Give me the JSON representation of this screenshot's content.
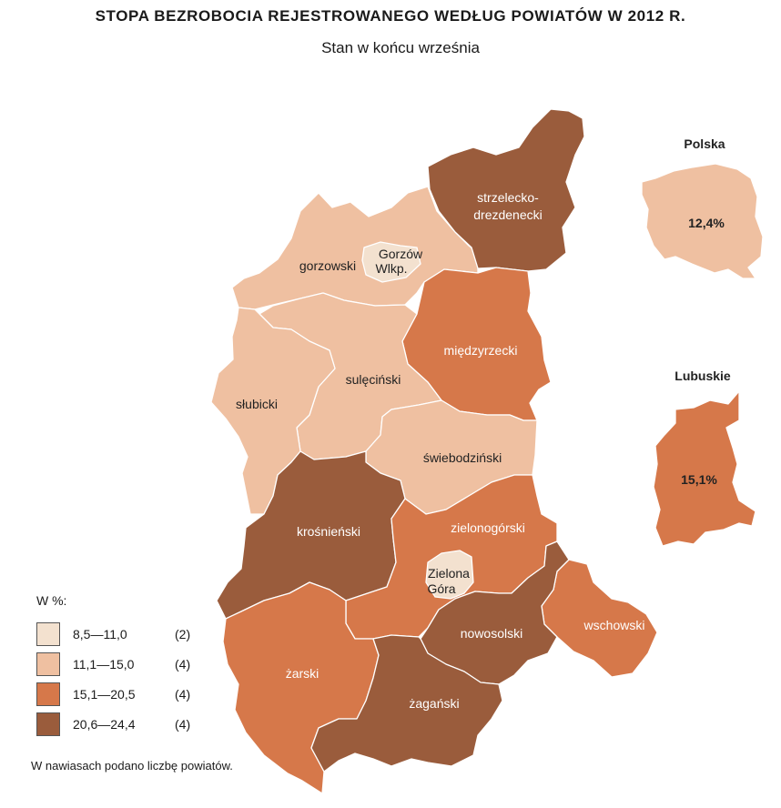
{
  "title": "STOPA BEZROBOCIA REJESTROWANEGO WEDŁUG POWIATÓW W 2012 R.",
  "subtitle": "Stan w końcu września",
  "colors": {
    "c1": "#f3e1cf",
    "c2": "#efc0a1",
    "c3": "#d6784a",
    "c4": "#9a5c3c"
  },
  "regions": {
    "strzelecko_drzdenecki": {
      "label_line1": "strzelecko-",
      "label_line2": "drezdenecki",
      "class": "c4"
    },
    "gorzowski": {
      "label": "gorzowski",
      "class": "c2"
    },
    "gorzow_wlkp": {
      "label_line1": "Gorzów",
      "label_line2": "Wlkp.",
      "class": "c1"
    },
    "miedzyrzecki": {
      "label": "międzyrzecki",
      "class": "c3"
    },
    "sulecinski": {
      "label": "sulęciński",
      "class": "c2"
    },
    "slubicki": {
      "label": "słubicki",
      "class": "c2"
    },
    "swiebodzinski": {
      "label": "świebodziński",
      "class": "c2"
    },
    "krosnienski": {
      "label": "krośnieński",
      "class": "c4"
    },
    "zielonogorski": {
      "label": "zielonogórski",
      "class": "c3"
    },
    "zielona_gora": {
      "label_line1": "Zielona",
      "label_line2": "Góra",
      "class": "c1"
    },
    "wschowski": {
      "label": "wschowski",
      "class": "c3"
    },
    "nowosolski": {
      "label": "nowosolski",
      "class": "c4"
    },
    "zarski": {
      "label": "żarski",
      "class": "c3"
    },
    "zaganski": {
      "label": "żagański",
      "class": "c4"
    }
  },
  "insets": {
    "polska": {
      "title": "Polska",
      "value": "12,4%"
    },
    "lubuskie": {
      "title": "Lubuskie",
      "value": "15,1%"
    }
  },
  "legend": {
    "title": "W %:",
    "items": [
      {
        "range": "8,5—11,0",
        "count": "(2)",
        "class": "c1"
      },
      {
        "range": "11,1—15,0",
        "count": "(4)",
        "class": "c2"
      },
      {
        "range": "15,1—20,5",
        "count": "(4)",
        "class": "c3"
      },
      {
        "range": "20,6—24,4",
        "count": "(4)",
        "class": "c4"
      }
    ]
  },
  "footnote": "W nawiasach podano liczbę powiatów."
}
